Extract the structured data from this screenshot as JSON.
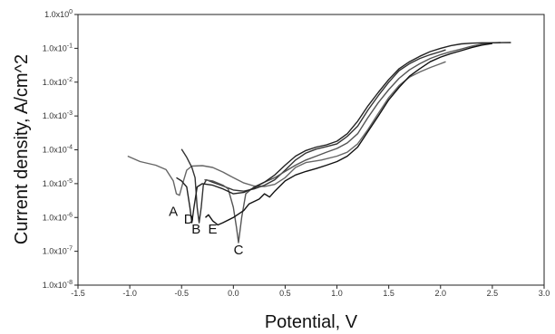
{
  "chart_data": {
    "type": "line",
    "xlabel": "Potential, V",
    "ylabel": "Current density, A/cm^2",
    "xlim": [
      -1.5,
      3.0
    ],
    "ylim": [
      1e-08,
      1
    ],
    "yscale": "log",
    "grid": false,
    "x_ticks": [
      {
        "value": -1.5,
        "label": "-1.5"
      },
      {
        "value": -1.0,
        "label": "-1.0"
      },
      {
        "value": -0.5,
        "label": "-0.5"
      },
      {
        "value": 0.0,
        "label": "0.0"
      },
      {
        "value": 0.5,
        "label": "0.5"
      },
      {
        "value": 1.0,
        "label": "1.0"
      },
      {
        "value": 1.5,
        "label": "1.5"
      },
      {
        "value": 2.0,
        "label": "2.0"
      },
      {
        "value": 2.5,
        "label": "2.5"
      },
      {
        "value": 3.0,
        "label": "3.0"
      }
    ],
    "y_ticks": [
      {
        "value": 1e-08,
        "mant": "1.0x10",
        "exp": "-8"
      },
      {
        "value": 1e-07,
        "mant": "1.0x10",
        "exp": "-7"
      },
      {
        "value": 1e-06,
        "mant": "1.0x10",
        "exp": "-6"
      },
      {
        "value": 1e-05,
        "mant": "1.0x10",
        "exp": "-5"
      },
      {
        "value": 0.0001,
        "mant": "1.0x10",
        "exp": "-4"
      },
      {
        "value": 0.001,
        "mant": "1.0x10",
        "exp": "-3"
      },
      {
        "value": 0.01,
        "mant": "1.0x10",
        "exp": "-2"
      },
      {
        "value": 0.1,
        "mant": "1.0x10",
        "exp": "-1"
      },
      {
        "value": 1,
        "mant": "1.0x10",
        "exp": "0"
      }
    ],
    "series": [
      {
        "label": "A",
        "color": "#666666",
        "label_at": {
          "x": -0.58,
          "y": 1.1e-06
        },
        "points": [
          [
            -1.02,
            6.5e-05
          ],
          [
            -0.9,
            4.5e-05
          ],
          [
            -0.75,
            3.5e-05
          ],
          [
            -0.65,
            2.6e-05
          ],
          [
            -0.58,
            1.2e-05
          ],
          [
            -0.55,
            5e-06
          ],
          [
            -0.52,
            4.5e-06
          ],
          [
            -0.49,
            1e-05
          ],
          [
            -0.45,
            2.5e-05
          ],
          [
            -0.4,
            3.3e-05
          ],
          [
            -0.3,
            3.4e-05
          ],
          [
            -0.2,
            3e-05
          ],
          [
            -0.1,
            2.2e-05
          ],
          [
            0.0,
            1.5e-05
          ],
          [
            0.1,
            1.05e-05
          ],
          [
            0.2,
            8.5e-06
          ],
          [
            0.3,
            8.2e-06
          ],
          [
            0.4,
            9.5e-06
          ],
          [
            0.5,
            1.5e-05
          ],
          [
            0.6,
            3e-05
          ],
          [
            0.7,
            4.2e-05
          ],
          [
            0.85,
            5e-05
          ],
          [
            1.0,
            6.5e-05
          ],
          [
            1.1,
            8.5e-05
          ],
          [
            1.2,
            0.00015
          ],
          [
            1.3,
            0.0004
          ],
          [
            1.4,
            0.0012
          ],
          [
            1.5,
            0.0035
          ],
          [
            1.6,
            0.008
          ],
          [
            1.7,
            0.014
          ],
          [
            1.8,
            0.02
          ],
          [
            1.9,
            0.027
          ],
          [
            2.0,
            0.035
          ],
          [
            2.05,
            0.04
          ]
        ]
      },
      {
        "label": "B",
        "color": "#333333",
        "label_at": {
          "x": -0.36,
          "y": 3.3e-07
        },
        "points": [
          [
            -0.5,
            0.000105
          ],
          [
            -0.45,
            6e-05
          ],
          [
            -0.4,
            3e-05
          ],
          [
            -0.37,
            1.5e-05
          ],
          [
            -0.35,
            2e-06
          ],
          [
            -0.33,
            7e-07
          ],
          [
            -0.31,
            2e-06
          ],
          [
            -0.29,
            9e-06
          ],
          [
            -0.26,
            1.3e-05
          ],
          [
            -0.2,
            1.1e-05
          ],
          [
            -0.1,
            8.5e-06
          ],
          [
            0.0,
            6.5e-06
          ],
          [
            0.1,
            6e-06
          ],
          [
            0.2,
            7e-06
          ],
          [
            0.3,
            9e-06
          ],
          [
            0.4,
            1.3e-05
          ],
          [
            0.5,
            2.5e-05
          ],
          [
            0.6,
            5e-05
          ],
          [
            0.7,
            8e-05
          ],
          [
            0.8,
            0.000105
          ],
          [
            0.9,
            0.000125
          ],
          [
            1.0,
            0.00015
          ],
          [
            1.1,
            0.00025
          ],
          [
            1.2,
            0.0005
          ],
          [
            1.3,
            0.0015
          ],
          [
            1.4,
            0.004
          ],
          [
            1.5,
            0.01
          ],
          [
            1.6,
            0.022
          ],
          [
            1.7,
            0.035
          ],
          [
            1.8,
            0.05
          ],
          [
            1.9,
            0.065
          ],
          [
            2.0,
            0.08
          ],
          [
            2.05,
            0.09
          ]
        ]
      },
      {
        "label": "C",
        "color": "#555555",
        "label_at": {
          "x": 0.05,
          "y": 8e-08
        },
        "points": [
          [
            -0.28,
            1.3e-05
          ],
          [
            -0.2,
            1.2e-05
          ],
          [
            -0.1,
            9e-06
          ],
          [
            -0.05,
            7e-06
          ],
          [
            0.0,
            2e-06
          ],
          [
            0.03,
            5e-07
          ],
          [
            0.05,
            1.8e-07
          ],
          [
            0.08,
            1e-06
          ],
          [
            0.12,
            5e-06
          ],
          [
            0.2,
            8e-06
          ],
          [
            0.3,
            1.1e-05
          ],
          [
            0.4,
            1.5e-05
          ],
          [
            0.5,
            2.3e-05
          ],
          [
            0.6,
            3.5e-05
          ],
          [
            0.7,
            5e-05
          ],
          [
            0.8,
            6.5e-05
          ],
          [
            0.9,
            8.5e-05
          ],
          [
            1.0,
            0.00011
          ],
          [
            1.1,
            0.00016
          ],
          [
            1.2,
            0.0003
          ],
          [
            1.3,
            0.0009
          ],
          [
            1.4,
            0.0025
          ],
          [
            1.5,
            0.006
          ],
          [
            1.6,
            0.013
          ],
          [
            1.7,
            0.023
          ],
          [
            1.8,
            0.035
          ],
          [
            1.9,
            0.05
          ],
          [
            2.0,
            0.065
          ],
          [
            2.1,
            0.08
          ],
          [
            2.2,
            0.095
          ],
          [
            2.3,
            0.115
          ],
          [
            2.4,
            0.135
          ],
          [
            2.5,
            0.145
          ],
          [
            2.58,
            0.148
          ]
        ]
      },
      {
        "label": "D",
        "color": "#222222",
        "label_at": {
          "x": -0.43,
          "y": 6.5e-07
        },
        "points": [
          [
            -0.55,
            1.5e-05
          ],
          [
            -0.5,
            1.2e-05
          ],
          [
            -0.45,
            8e-06
          ],
          [
            -0.42,
            2e-06
          ],
          [
            -0.4,
            7e-07
          ],
          [
            -0.38,
            2e-06
          ],
          [
            -0.35,
            8e-06
          ],
          [
            -0.3,
            1e-05
          ],
          [
            -0.2,
            9e-06
          ],
          [
            -0.1,
            7e-06
          ],
          [
            0.0,
            5e-06
          ],
          [
            0.1,
            5.5e-06
          ],
          [
            0.2,
            7.5e-06
          ],
          [
            0.3,
            1.1e-05
          ],
          [
            0.4,
            1.8e-05
          ],
          [
            0.5,
            3.5e-05
          ],
          [
            0.6,
            6.5e-05
          ],
          [
            0.7,
            9.5e-05
          ],
          [
            0.8,
            0.00012
          ],
          [
            0.9,
            0.00014
          ],
          [
            1.0,
            0.00018
          ],
          [
            1.1,
            0.0003
          ],
          [
            1.2,
            0.0007
          ],
          [
            1.3,
            0.002
          ],
          [
            1.4,
            0.005
          ],
          [
            1.5,
            0.012
          ],
          [
            1.6,
            0.025
          ],
          [
            1.7,
            0.04
          ],
          [
            1.8,
            0.058
          ],
          [
            1.9,
            0.08
          ],
          [
            2.0,
            0.1
          ],
          [
            2.1,
            0.12
          ],
          [
            2.2,
            0.135
          ],
          [
            2.3,
            0.142
          ],
          [
            2.4,
            0.145
          ],
          [
            2.5,
            0.145
          ],
          [
            2.6,
            0.147
          ],
          [
            2.68,
            0.148
          ]
        ]
      },
      {
        "label": "E",
        "color": "#111111",
        "label_at": {
          "x": -0.2,
          "y": 3.3e-07
        },
        "points": [
          [
            -0.27,
            1e-06
          ],
          [
            -0.24,
            1.2e-06
          ],
          [
            -0.2,
            8e-07
          ],
          [
            -0.15,
            6e-07
          ],
          [
            -0.1,
            7e-07
          ],
          [
            0.0,
            1e-06
          ],
          [
            0.1,
            1.6e-06
          ],
          [
            0.15,
            2.5e-06
          ],
          [
            0.25,
            3.5e-06
          ],
          [
            0.3,
            5e-06
          ],
          [
            0.35,
            4e-06
          ],
          [
            0.4,
            6e-06
          ],
          [
            0.5,
            1.2e-05
          ],
          [
            0.6,
            1.8e-05
          ],
          [
            0.7,
            2.3e-05
          ],
          [
            0.8,
            2.8e-05
          ],
          [
            0.9,
            3.5e-05
          ],
          [
            1.0,
            4.5e-05
          ],
          [
            1.1,
            6.5e-05
          ],
          [
            1.2,
            0.00012
          ],
          [
            1.3,
            0.00035
          ],
          [
            1.4,
            0.001
          ],
          [
            1.5,
            0.003
          ],
          [
            1.6,
            0.007
          ],
          [
            1.7,
            0.015
          ],
          [
            1.8,
            0.025
          ],
          [
            1.9,
            0.04
          ],
          [
            2.0,
            0.055
          ],
          [
            2.1,
            0.07
          ],
          [
            2.2,
            0.085
          ],
          [
            2.3,
            0.105
          ],
          [
            2.4,
            0.125
          ],
          [
            2.5,
            0.138
          ]
        ]
      }
    ]
  }
}
